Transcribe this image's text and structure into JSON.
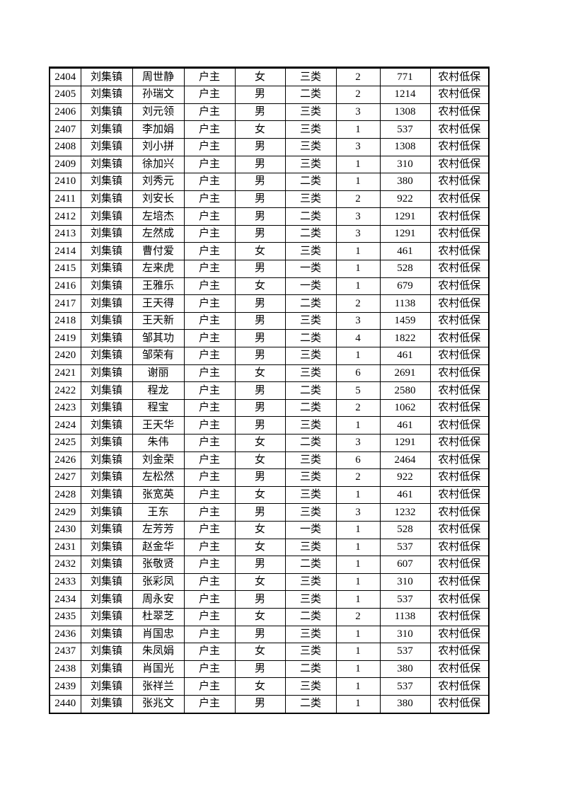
{
  "page": {
    "background_color": "#ffffff",
    "text_color": "#000000",
    "table_border_color": "#000000"
  },
  "table": {
    "rows": [
      [
        "2404",
        "刘集镇",
        "周世静",
        "户主",
        "女",
        "三类",
        "2",
        "771",
        "农村低保"
      ],
      [
        "2405",
        "刘集镇",
        "孙瑞文",
        "户主",
        "男",
        "二类",
        "2",
        "1214",
        "农村低保"
      ],
      [
        "2406",
        "刘集镇",
        "刘元领",
        "户主",
        "男",
        "三类",
        "3",
        "1308",
        "农村低保"
      ],
      [
        "2407",
        "刘集镇",
        "李加娟",
        "户主",
        "女",
        "三类",
        "1",
        "537",
        "农村低保"
      ],
      [
        "2408",
        "刘集镇",
        "刘小拼",
        "户主",
        "男",
        "三类",
        "3",
        "1308",
        "农村低保"
      ],
      [
        "2409",
        "刘集镇",
        "徐加兴",
        "户主",
        "男",
        "三类",
        "1",
        "310",
        "农村低保"
      ],
      [
        "2410",
        "刘集镇",
        "刘秀元",
        "户主",
        "男",
        "二类",
        "1",
        "380",
        "农村低保"
      ],
      [
        "2411",
        "刘集镇",
        "刘安长",
        "户主",
        "男",
        "三类",
        "2",
        "922",
        "农村低保"
      ],
      [
        "2412",
        "刘集镇",
        "左培杰",
        "户主",
        "男",
        "二类",
        "3",
        "1291",
        "农村低保"
      ],
      [
        "2413",
        "刘集镇",
        "左然成",
        "户主",
        "男",
        "二类",
        "3",
        "1291",
        "农村低保"
      ],
      [
        "2414",
        "刘集镇",
        "曹付爱",
        "户主",
        "女",
        "三类",
        "1",
        "461",
        "农村低保"
      ],
      [
        "2415",
        "刘集镇",
        "左来虎",
        "户主",
        "男",
        "一类",
        "1",
        "528",
        "农村低保"
      ],
      [
        "2416",
        "刘集镇",
        "王雅乐",
        "户主",
        "女",
        "一类",
        "1",
        "679",
        "农村低保"
      ],
      [
        "2417",
        "刘集镇",
        "王天得",
        "户主",
        "男",
        "二类",
        "2",
        "1138",
        "农村低保"
      ],
      [
        "2418",
        "刘集镇",
        "王天新",
        "户主",
        "男",
        "三类",
        "3",
        "1459",
        "农村低保"
      ],
      [
        "2419",
        "刘集镇",
        "邹其功",
        "户主",
        "男",
        "二类",
        "4",
        "1822",
        "农村低保"
      ],
      [
        "2420",
        "刘集镇",
        "邹荣有",
        "户主",
        "男",
        "三类",
        "1",
        "461",
        "农村低保"
      ],
      [
        "2421",
        "刘集镇",
        "谢丽",
        "户主",
        "女",
        "三类",
        "6",
        "2691",
        "农村低保"
      ],
      [
        "2422",
        "刘集镇",
        "程龙",
        "户主",
        "男",
        "二类",
        "5",
        "2580",
        "农村低保"
      ],
      [
        "2423",
        "刘集镇",
        "程宝",
        "户主",
        "男",
        "二类",
        "2",
        "1062",
        "农村低保"
      ],
      [
        "2424",
        "刘集镇",
        "王天华",
        "户主",
        "男",
        "三类",
        "1",
        "461",
        "农村低保"
      ],
      [
        "2425",
        "刘集镇",
        "朱伟",
        "户主",
        "女",
        "二类",
        "3",
        "1291",
        "农村低保"
      ],
      [
        "2426",
        "刘集镇",
        "刘金荣",
        "户主",
        "女",
        "三类",
        "6",
        "2464",
        "农村低保"
      ],
      [
        "2427",
        "刘集镇",
        "左松然",
        "户主",
        "男",
        "三类",
        "2",
        "922",
        "农村低保"
      ],
      [
        "2428",
        "刘集镇",
        "张宽英",
        "户主",
        "女",
        "三类",
        "1",
        "461",
        "农村低保"
      ],
      [
        "2429",
        "刘集镇",
        "王东",
        "户主",
        "男",
        "三类",
        "3",
        "1232",
        "农村低保"
      ],
      [
        "2430",
        "刘集镇",
        "左芳芳",
        "户主",
        "女",
        "一类",
        "1",
        "528",
        "农村低保"
      ],
      [
        "2431",
        "刘集镇",
        "赵金华",
        "户主",
        "女",
        "三类",
        "1",
        "537",
        "农村低保"
      ],
      [
        "2432",
        "刘集镇",
        "张敬贤",
        "户主",
        "男",
        "二类",
        "1",
        "607",
        "农村低保"
      ],
      [
        "2433",
        "刘集镇",
        "张彩凤",
        "户主",
        "女",
        "三类",
        "1",
        "310",
        "农村低保"
      ],
      [
        "2434",
        "刘集镇",
        "周永安",
        "户主",
        "男",
        "三类",
        "1",
        "537",
        "农村低保"
      ],
      [
        "2435",
        "刘集镇",
        "杜翠芝",
        "户主",
        "女",
        "二类",
        "2",
        "1138",
        "农村低保"
      ],
      [
        "2436",
        "刘集镇",
        "肖国忠",
        "户主",
        "男",
        "三类",
        "1",
        "310",
        "农村低保"
      ],
      [
        "2437",
        "刘集镇",
        "朱凤娟",
        "户主",
        "女",
        "三类",
        "1",
        "537",
        "农村低保"
      ],
      [
        "2438",
        "刘集镇",
        "肖国光",
        "户主",
        "男",
        "二类",
        "1",
        "380",
        "农村低保"
      ],
      [
        "2439",
        "刘集镇",
        "张祥兰",
        "户主",
        "女",
        "三类",
        "1",
        "537",
        "农村低保"
      ],
      [
        "2440",
        "刘集镇",
        "张兆文",
        "户主",
        "男",
        "二类",
        "1",
        "380",
        "农村低保"
      ]
    ]
  }
}
